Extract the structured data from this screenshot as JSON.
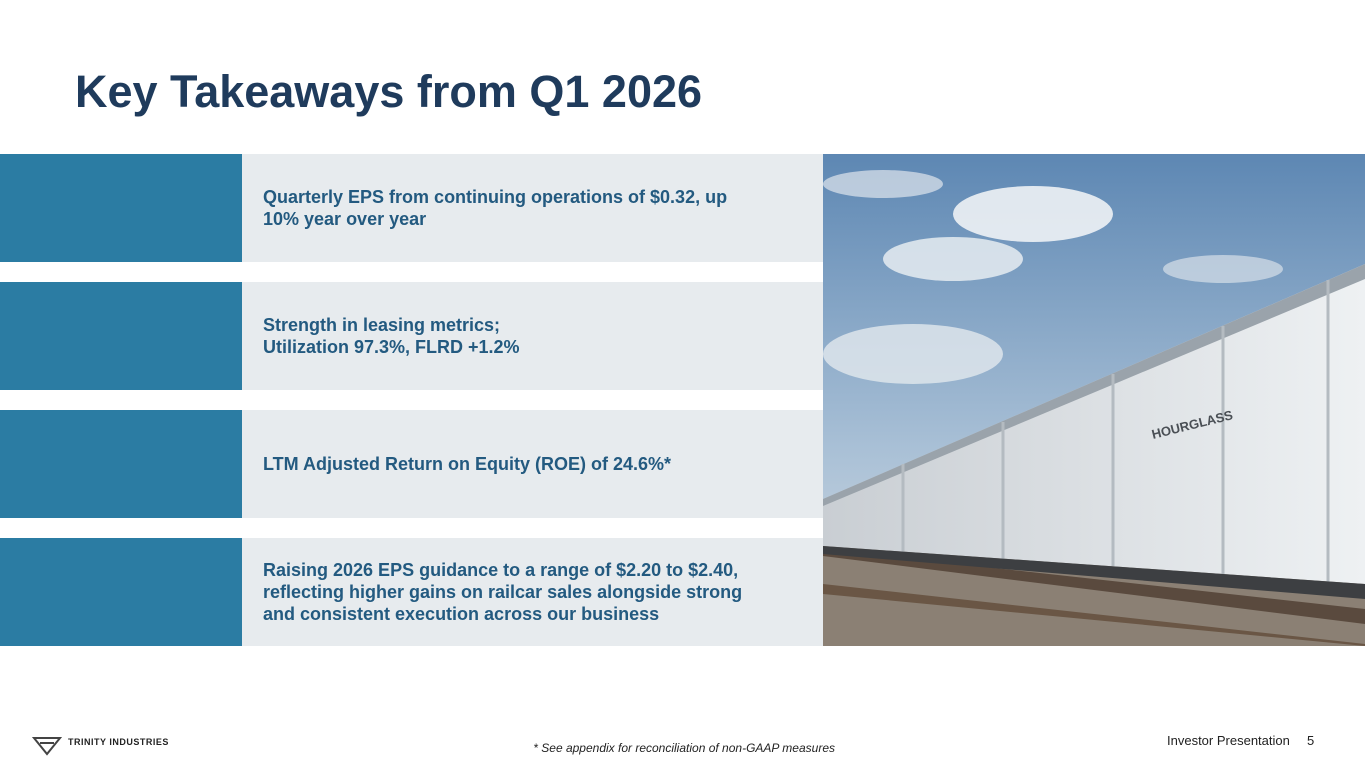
{
  "title": "Key Takeaways from Q1 2026",
  "items": [
    [
      "Quarterly EPS from continuing operations of $0.32, up",
      "10% year over year"
    ],
    [
      "Strength in leasing metrics;",
      "Utilization 97.3%, FLRD +1.2%"
    ],
    [
      "LTM Adjusted Return on Equity (ROE) of 24.6%*"
    ],
    [
      "Raising 2026 EPS guidance to a range of $2.20 to $2.40,",
      "reflecting higher gains on railcar sales alongside strong",
      "and consistent execution across our business"
    ]
  ],
  "photo": {
    "label": "HOURGLASS"
  },
  "footer": {
    "logo": "TRINITY INDUSTRIES",
    "footnote": "* See appendix for reconciliation of non-GAAP measures",
    "presentation": "Investor Presentation",
    "page": "5"
  }
}
